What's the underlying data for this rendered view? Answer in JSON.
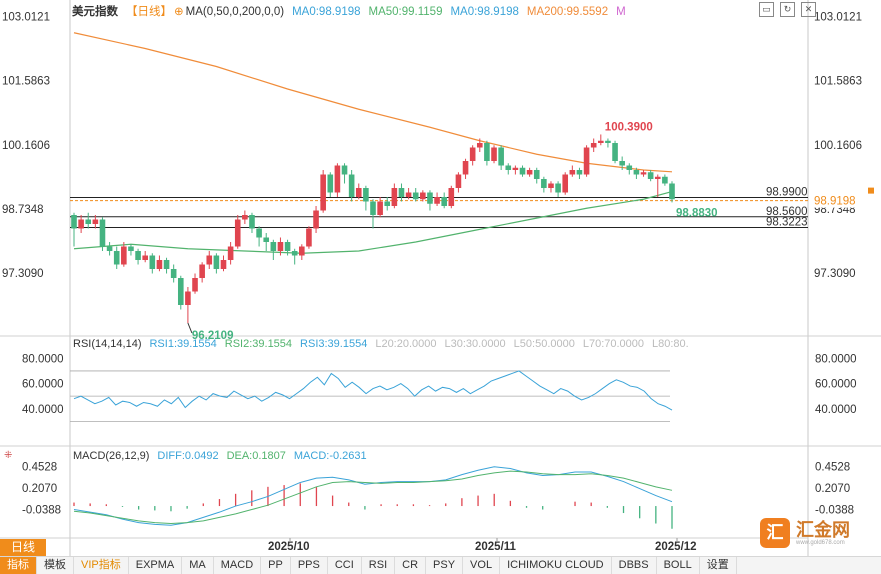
{
  "header": {
    "title": "美元指数",
    "period": "【日线】",
    "ma_label": "MA(0,50,0,200,0,0)",
    "ma_items": [
      {
        "text": "MA0:98.9198",
        "color": "#3aa3d8"
      },
      {
        "text": "MA50:99.1159",
        "color": "#52b36d"
      },
      {
        "text": "MA0:98.9198",
        "color": "#3aa3d8"
      },
      {
        "text": "MA200:99.5592",
        "color": "#f08c3a"
      },
      {
        "text": "M",
        "color": "#d067d0"
      }
    ]
  },
  "price_axis": {
    "ticks": [
      "103.0121",
      "101.5863",
      "100.1606",
      "98.7348",
      "97.3090"
    ],
    "current_label": "98.9198"
  },
  "annotations": {
    "high": "100.3900",
    "low": "96.2109",
    "last": "98.8830",
    "levels": [
      "98.9900",
      "98.5600",
      "98.3223"
    ]
  },
  "rsi": {
    "label": "RSI(14,14,14)",
    "items": [
      {
        "text": "RSI1:39.1554",
        "color": "#3aa3d8"
      },
      {
        "text": "RSI2:39.1554",
        "color": "#52b36d"
      },
      {
        "text": "RSI3:39.1554",
        "color": "#3aa3d8"
      },
      {
        "text": "L20:20.0000",
        "color": "#bbbbbb"
      },
      {
        "text": "L30:30.0000",
        "color": "#bbbbbb"
      },
      {
        "text": "L50:50.0000",
        "color": "#bbbbbb"
      },
      {
        "text": "L70:70.0000",
        "color": "#bbbbbb"
      },
      {
        "text": "L80:80.",
        "color": "#bbbbbb"
      }
    ],
    "axis_left": [
      "80.0000",
      "60.0000",
      "40.0000"
    ],
    "axis_right": [
      "80.0000",
      "60.0000",
      "40.0000"
    ]
  },
  "macd": {
    "label": "MACD(26,12,9)",
    "items": [
      {
        "text": "DIFF:0.0492",
        "color": "#3aa3d8"
      },
      {
        "text": "DEA:0.1807",
        "color": "#52b36d"
      },
      {
        "text": "MACD:-0.2631",
        "color": "#3aa3d8"
      }
    ],
    "axis_left": [
      "0.4528",
      "0.2070",
      "-0.0388"
    ],
    "axis_right": [
      "0.4528",
      "0.2070",
      "-0.0388"
    ]
  },
  "dates": [
    "2025/10",
    "2025/11",
    "2025/12"
  ],
  "toolbar": [
    "指标",
    "模板",
    "VIP指标",
    "EXPMA",
    "MA",
    "MACD",
    "PP",
    "PPS",
    "CCI",
    "RSI",
    "CR",
    "PSY",
    "VOL",
    "ICHIMOKU CLOUD",
    "DBBS",
    "BOLL",
    "设置"
  ],
  "day_button": "日线",
  "logo": {
    "mark": "汇",
    "text": "汇金网",
    "sub": "www.gold678.com"
  },
  "colors": {
    "up": "#e0454f",
    "down": "#45b381",
    "ma200": "#f08c3a",
    "ma50": "#52b36d",
    "rsi": "#3aa3d8",
    "accent": "#f08c1b"
  },
  "chart_data": {
    "type": "candlestick",
    "title": "美元指数 日线",
    "ylim": [
      96.0,
      103.2
    ],
    "candles": [
      [
        98.6,
        98.3,
        98.65,
        97.9
      ],
      [
        98.3,
        98.5,
        98.6,
        98.2
      ],
      [
        98.5,
        98.4,
        98.65,
        98.3
      ],
      [
        98.4,
        98.5,
        98.6,
        98.3
      ],
      [
        98.5,
        97.9,
        98.55,
        97.8
      ],
      [
        97.9,
        97.8,
        98.0,
        97.7
      ],
      [
        97.8,
        97.5,
        97.9,
        97.4
      ],
      [
        97.5,
        97.9,
        98.0,
        97.45
      ],
      [
        97.9,
        97.8,
        97.95,
        97.7
      ],
      [
        97.8,
        97.6,
        97.85,
        97.5
      ],
      [
        97.6,
        97.7,
        97.8,
        97.55
      ],
      [
        97.7,
        97.4,
        97.75,
        97.3
      ],
      [
        97.4,
        97.6,
        97.7,
        97.35
      ],
      [
        97.6,
        97.4,
        97.65,
        97.3
      ],
      [
        97.4,
        97.2,
        97.5,
        97.1
      ],
      [
        97.2,
        96.6,
        97.25,
        96.5
      ],
      [
        96.6,
        96.9,
        97.0,
        96.2
      ],
      [
        96.9,
        97.2,
        97.3,
        96.85
      ],
      [
        97.2,
        97.5,
        97.55,
        97.1
      ],
      [
        97.5,
        97.7,
        97.8,
        97.4
      ],
      [
        97.7,
        97.4,
        97.75,
        97.3
      ],
      [
        97.4,
        97.6,
        97.7,
        97.35
      ],
      [
        97.6,
        97.9,
        98.0,
        97.5
      ],
      [
        97.9,
        98.5,
        98.6,
        97.85
      ],
      [
        98.5,
        98.6,
        98.7,
        98.4
      ],
      [
        98.6,
        98.3,
        98.65,
        98.2
      ],
      [
        98.3,
        98.1,
        98.35,
        97.9
      ],
      [
        98.1,
        98.0,
        98.2,
        97.8
      ],
      [
        98.0,
        97.8,
        98.05,
        97.6
      ],
      [
        97.8,
        98.0,
        98.1,
        97.7
      ],
      [
        98.0,
        97.8,
        98.05,
        97.7
      ],
      [
        97.8,
        97.7,
        97.85,
        97.5
      ],
      [
        97.7,
        97.9,
        97.95,
        97.6
      ],
      [
        97.9,
        98.3,
        98.35,
        97.85
      ],
      [
        98.3,
        98.7,
        98.8,
        98.2
      ],
      [
        98.7,
        99.5,
        99.6,
        98.65
      ],
      [
        99.5,
        99.1,
        99.55,
        99.0
      ],
      [
        99.1,
        99.7,
        99.75,
        99.0
      ],
      [
        99.7,
        99.5,
        99.75,
        99.3
      ],
      [
        99.5,
        99.0,
        99.6,
        98.9
      ],
      [
        99.0,
        99.2,
        99.3,
        98.95
      ],
      [
        99.2,
        98.9,
        99.25,
        98.7
      ],
      [
        98.9,
        98.6,
        98.95,
        98.3
      ],
      [
        98.6,
        98.9,
        99.0,
        98.55
      ],
      [
        98.9,
        98.8,
        99.0,
        98.7
      ],
      [
        98.8,
        99.2,
        99.3,
        98.75
      ],
      [
        99.2,
        99.0,
        99.3,
        98.9
      ],
      [
        99.0,
        99.1,
        99.2,
        98.95
      ],
      [
        99.1,
        98.95,
        99.2,
        98.9
      ],
      [
        98.95,
        99.1,
        99.15,
        98.9
      ],
      [
        99.1,
        98.85,
        99.15,
        98.7
      ],
      [
        98.85,
        99.0,
        99.1,
        98.8
      ],
      [
        99.0,
        98.8,
        99.1,
        98.75
      ],
      [
        98.8,
        99.2,
        99.25,
        98.75
      ],
      [
        99.2,
        99.5,
        99.55,
        99.1
      ],
      [
        99.5,
        99.8,
        99.85,
        99.4
      ],
      [
        99.8,
        100.1,
        100.15,
        99.7
      ],
      [
        100.1,
        100.2,
        100.3,
        100.0
      ],
      [
        100.2,
        99.8,
        100.25,
        99.7
      ],
      [
        99.8,
        100.1,
        100.15,
        99.75
      ],
      [
        100.1,
        99.7,
        100.15,
        99.6
      ],
      [
        99.7,
        99.6,
        99.75,
        99.5
      ],
      [
        99.6,
        99.65,
        99.7,
        99.5
      ],
      [
        99.65,
        99.5,
        99.7,
        99.45
      ],
      [
        99.5,
        99.6,
        99.65,
        99.45
      ],
      [
        99.6,
        99.4,
        99.65,
        99.3
      ],
      [
        99.4,
        99.2,
        99.45,
        99.1
      ],
      [
        99.2,
        99.3,
        99.35,
        99.1
      ],
      [
        99.3,
        99.1,
        99.35,
        99.0
      ],
      [
        99.1,
        99.5,
        99.55,
        99.05
      ],
      [
        99.5,
        99.6,
        99.7,
        99.45
      ],
      [
        99.6,
        99.5,
        99.65,
        99.4
      ],
      [
        99.5,
        100.1,
        100.15,
        99.45
      ],
      [
        100.1,
        100.2,
        100.3,
        100.0
      ],
      [
        100.2,
        100.25,
        100.39,
        100.15
      ],
      [
        100.25,
        100.2,
        100.3,
        100.1
      ],
      [
        100.2,
        99.8,
        100.25,
        99.75
      ],
      [
        99.8,
        99.7,
        99.9,
        99.6
      ],
      [
        99.7,
        99.6,
        99.75,
        99.5
      ],
      [
        99.6,
        99.5,
        99.65,
        99.4
      ],
      [
        99.5,
        99.55,
        99.6,
        99.45
      ],
      [
        99.55,
        99.4,
        99.6,
        99.35
      ],
      [
        99.4,
        99.45,
        99.5,
        99.0
      ],
      [
        99.45,
        99.3,
        99.5,
        99.25
      ],
      [
        99.3,
        98.95,
        99.35,
        98.88
      ]
    ],
    "ma200": [
      [
        0,
        102.65
      ],
      [
        10,
        102.3
      ],
      [
        20,
        101.9
      ],
      [
        30,
        101.4
      ],
      [
        40,
        100.95
      ],
      [
        50,
        100.55
      ],
      [
        57,
        100.25
      ],
      [
        65,
        99.95
      ],
      [
        72,
        99.75
      ],
      [
        80,
        99.6
      ],
      [
        84,
        99.56
      ]
    ],
    "ma50": [
      [
        0,
        97.85
      ],
      [
        8,
        97.95
      ],
      [
        16,
        97.85
      ],
      [
        24,
        97.8
      ],
      [
        32,
        97.75
      ],
      [
        40,
        97.8
      ],
      [
        48,
        98.0
      ],
      [
        56,
        98.25
      ],
      [
        64,
        98.5
      ],
      [
        72,
        98.75
      ],
      [
        80,
        98.95
      ],
      [
        84,
        99.12
      ]
    ],
    "rsi_values": [
      48,
      50,
      47,
      44,
      46,
      49,
      43,
      46,
      45,
      42,
      45,
      44,
      42,
      47,
      44,
      49,
      41,
      46,
      50,
      47,
      52,
      50,
      49,
      54,
      51,
      48,
      50,
      46,
      49,
      53,
      51,
      48,
      52,
      56,
      61,
      65,
      59,
      68,
      64,
      57,
      61,
      57,
      52,
      56,
      58,
      55,
      57,
      60,
      56,
      50,
      55,
      58,
      54,
      57,
      56,
      53,
      56,
      52,
      55,
      58,
      62,
      64,
      66,
      68,
      70,
      66,
      62,
      58,
      55,
      52,
      56,
      54,
      50,
      47,
      49,
      52,
      56,
      60,
      63,
      61,
      58,
      57,
      54,
      48,
      44,
      42,
      39
    ],
    "macd_diff": [
      -0.04,
      -0.07,
      -0.1,
      -0.15,
      -0.19,
      -0.21,
      -0.22,
      -0.19,
      -0.13,
      -0.07,
      0.0,
      0.05,
      0.11,
      0.19,
      0.27,
      0.32,
      0.33,
      0.3,
      0.25,
      0.27,
      0.28,
      0.28,
      0.28,
      0.3,
      0.36,
      0.41,
      0.45,
      0.43,
      0.38,
      0.35,
      0.36,
      0.39,
      0.39,
      0.34,
      0.28,
      0.2,
      0.12,
      0.05
    ],
    "macd_dea": [
      -0.06,
      -0.08,
      -0.11,
      -0.14,
      -0.17,
      -0.19,
      -0.2,
      -0.19,
      -0.17,
      -0.13,
      -0.09,
      -0.04,
      0.01,
      0.08,
      0.15,
      0.22,
      0.27,
      0.28,
      0.27,
      0.26,
      0.27,
      0.27,
      0.28,
      0.29,
      0.31,
      0.35,
      0.38,
      0.4,
      0.39,
      0.37,
      0.36,
      0.36,
      0.37,
      0.35,
      0.32,
      0.27,
      0.22,
      0.18
    ],
    "macd_hist": [
      0.04,
      0.03,
      0.02,
      -0.01,
      -0.04,
      -0.05,
      -0.06,
      -0.03,
      0.03,
      0.08,
      0.14,
      0.18,
      0.22,
      0.24,
      0.26,
      0.22,
      0.12,
      0.04,
      -0.04,
      0.02,
      0.02,
      0.02,
      0.01,
      0.03,
      0.09,
      0.12,
      0.14,
      0.06,
      -0.02,
      -0.04,
      0.0,
      0.05,
      0.04,
      -0.02,
      -0.08,
      -0.14,
      -0.2,
      -0.26
    ]
  }
}
